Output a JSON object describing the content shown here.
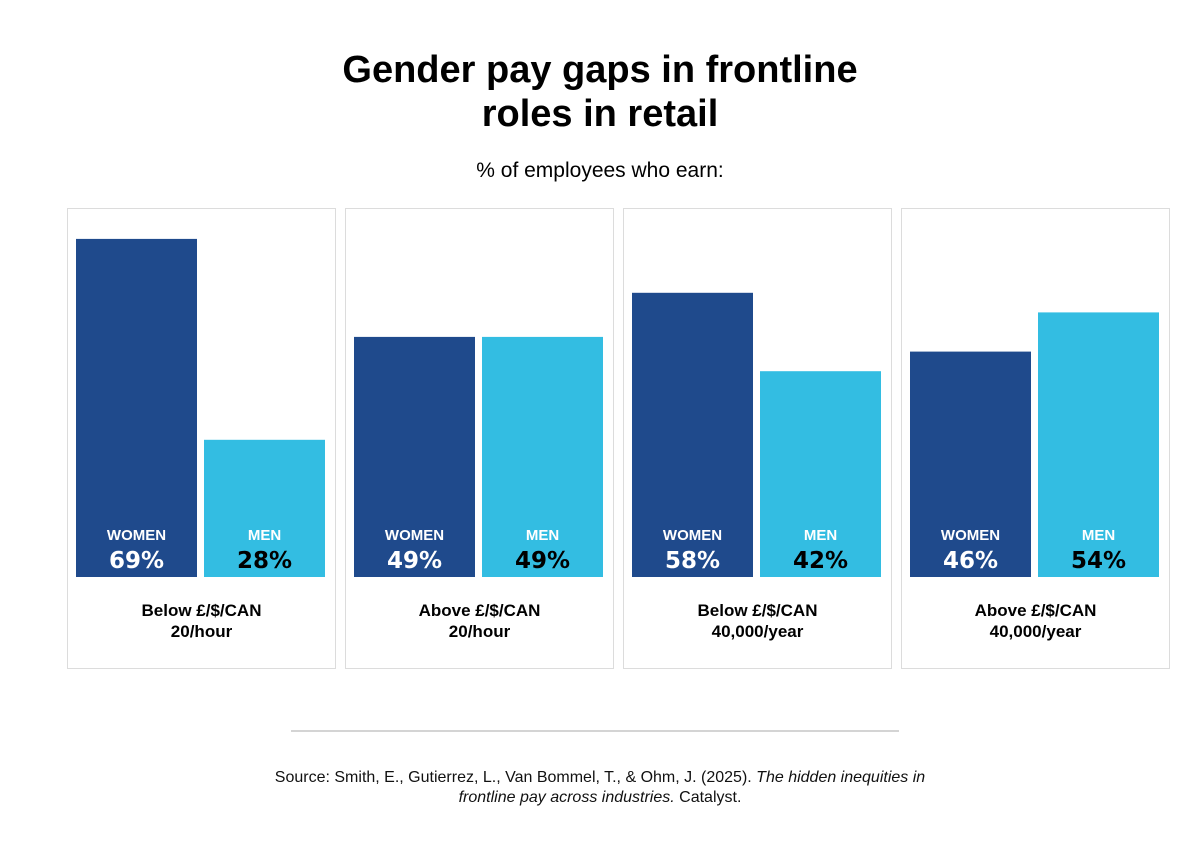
{
  "colors": {
    "women": "#1f4a8c",
    "men": "#33bde2",
    "women_value_text": "#ffffff",
    "men_value_text": "#000000"
  },
  "footer": {
    "source_prefix": "Source: Smith, E., Gutierrez, L., Van Bommel, T., & Ohm, J. (2025).",
    "source_italic_1": "The hidden inequities in",
    "source_italic_2": "frontline pay across industries.",
    "source_suffix": "Catalyst."
  },
  "chart_data": {
    "type": "bar",
    "title_line1": "Gender pay gaps in frontline",
    "title_line2": "roles in retail",
    "subtitle": "% of employees who earn:",
    "ylim": [
      0,
      75
    ],
    "series_names": [
      "WOMEN",
      "MEN"
    ],
    "panels": [
      {
        "label_line1": "Below £/$/CAN",
        "label_line2": "20/hour",
        "bars": [
          {
            "name": "WOMEN",
            "value": 69,
            "value_label": "69%"
          },
          {
            "name": "MEN",
            "value": 28,
            "value_label": "28%"
          }
        ]
      },
      {
        "label_line1": "Above £/$/CAN",
        "label_line2": "20/hour",
        "bars": [
          {
            "name": "WOMEN",
            "value": 49,
            "value_label": "49%"
          },
          {
            "name": "MEN",
            "value": 49,
            "value_label": "49%"
          }
        ]
      },
      {
        "label_line1": "Below £/$/CAN",
        "label_line2": "40,000/year",
        "bars": [
          {
            "name": "WOMEN",
            "value": 58,
            "value_label": "58%"
          },
          {
            "name": "MEN",
            "value": 42,
            "value_label": "42%"
          }
        ]
      },
      {
        "label_line1": "Above £/$/CAN",
        "label_line2": "40,000/year",
        "bars": [
          {
            "name": "WOMEN",
            "value": 46,
            "value_label": "46%"
          },
          {
            "name": "MEN",
            "value": 54,
            "value_label": "54%"
          }
        ]
      }
    ]
  }
}
